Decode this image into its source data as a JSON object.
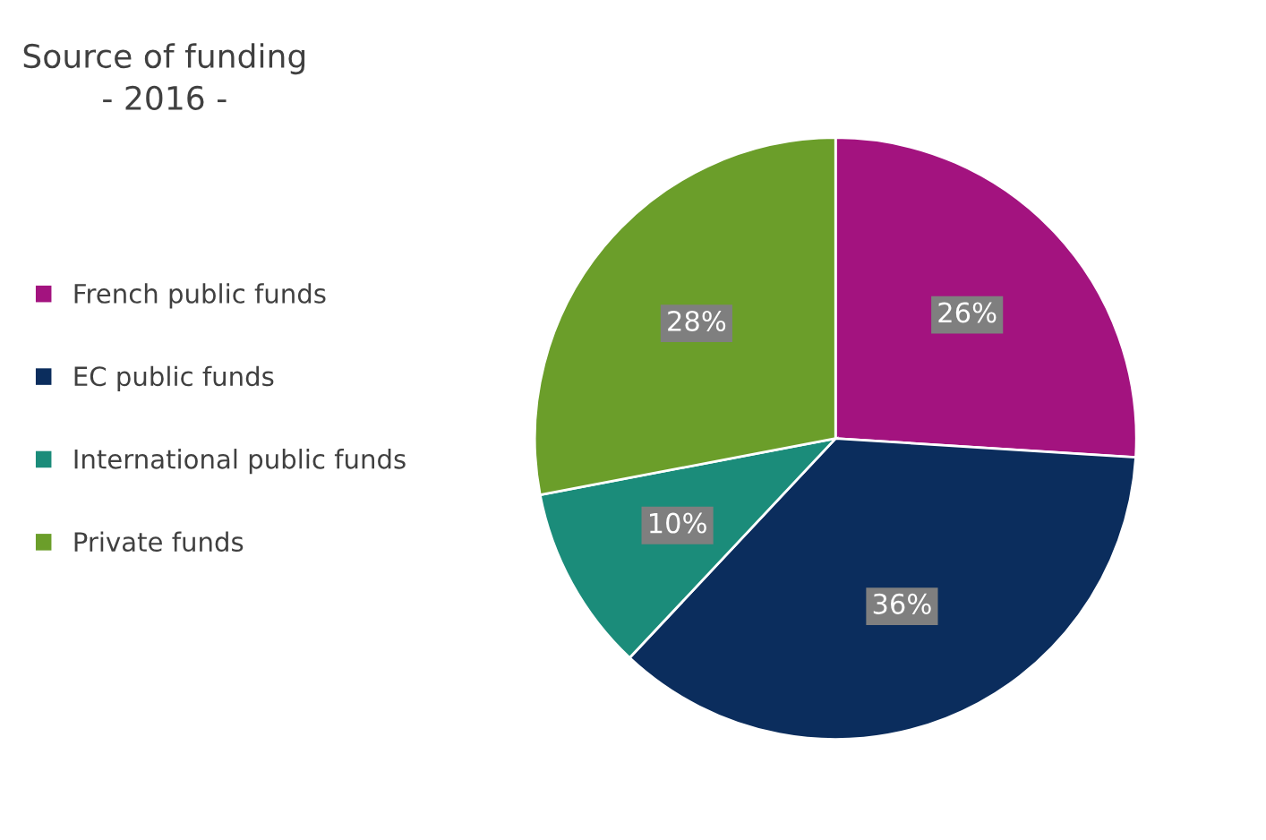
{
  "chart_data": {
    "type": "pie",
    "title": "Source of funding",
    "subtitle": "- 2016 -",
    "categories": [
      "French public funds",
      "EC public funds",
      "International public funds",
      "Private funds"
    ],
    "values": [
      26,
      36,
      10,
      28
    ],
    "colors": [
      "#a3137f",
      "#0b2d5d",
      "#1b8c7a",
      "#6b9e2a"
    ],
    "value_labels": [
      "26%",
      "36%",
      "10%",
      "28%"
    ],
    "legend": "left"
  }
}
